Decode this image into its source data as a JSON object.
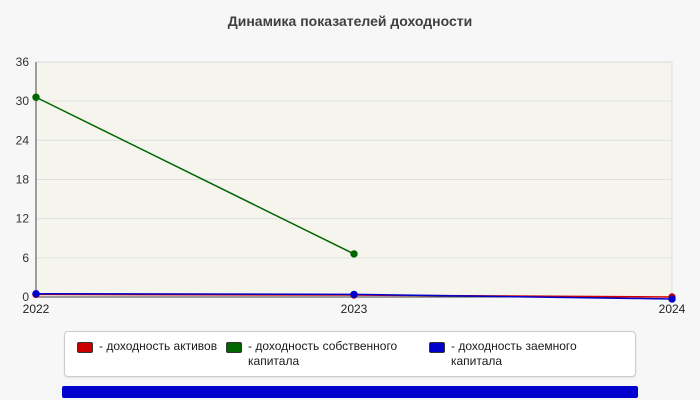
{
  "title": "Динамика показателей доходности",
  "chart_data": {
    "type": "line",
    "title": "Динамика показателей доходности",
    "categories": [
      "2022",
      "2023",
      "2024"
    ],
    "series": [
      {
        "name": "доходность активов",
        "color": "#cc0000",
        "values": [
          0.4,
          0.3,
          0.0
        ]
      },
      {
        "name": "доходность собственного капитала",
        "color": "#006600",
        "values": [
          30.6,
          6.6,
          null
        ]
      },
      {
        "name": "доходность заемного капитала",
        "color": "#0000cc",
        "values": [
          0.5,
          0.4,
          -0.3
        ]
      }
    ],
    "ylim": [
      0,
      36
    ],
    "yticks": [
      0,
      6,
      12,
      18,
      24,
      30,
      36
    ],
    "grid": true,
    "legend_position": "bottom"
  },
  "legend": {
    "items": [
      {
        "label": "- доходность активов",
        "color": "#cc0000"
      },
      {
        "label": "- доходность собственного капитала",
        "color": "#006600"
      },
      {
        "label": "- доходность заемного капитала",
        "color": "#0000cc"
      }
    ]
  }
}
